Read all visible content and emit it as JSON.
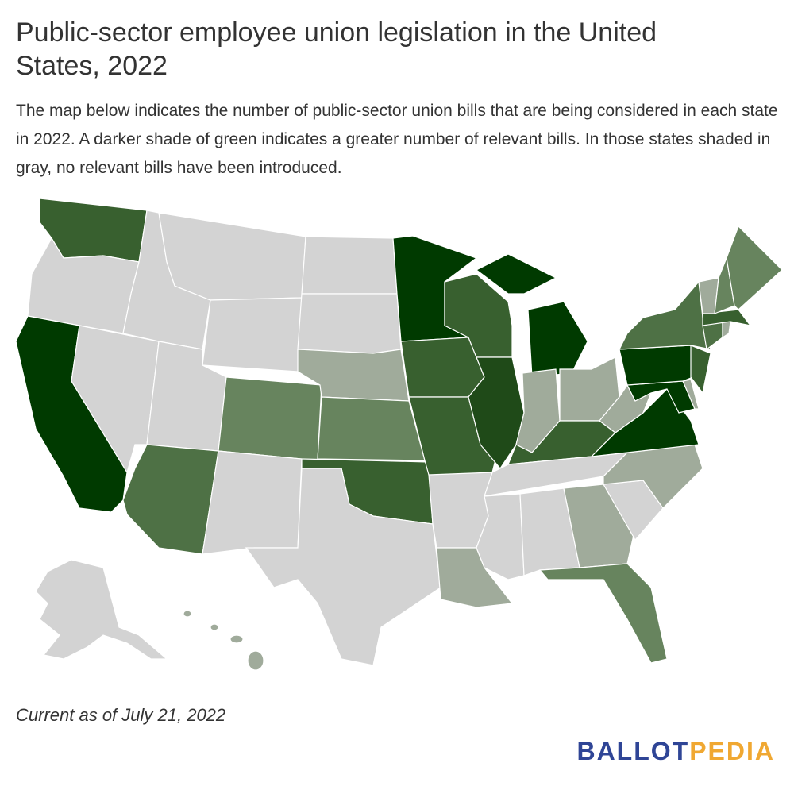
{
  "header": {
    "title": "Public-sector employee union legislation in the United States, 2022",
    "description": "The map below indicates the number of public-sector union bills that are being considered in each state in 2022. A darker shade of green indicates a greater number of relevant bills. In those states shaded in gray, no relevant bills have been introduced."
  },
  "footer": {
    "note": "Current as of July 21, 2022",
    "logo": {
      "part1": "BALLOT",
      "part2": "PEDIA"
    }
  }
}
